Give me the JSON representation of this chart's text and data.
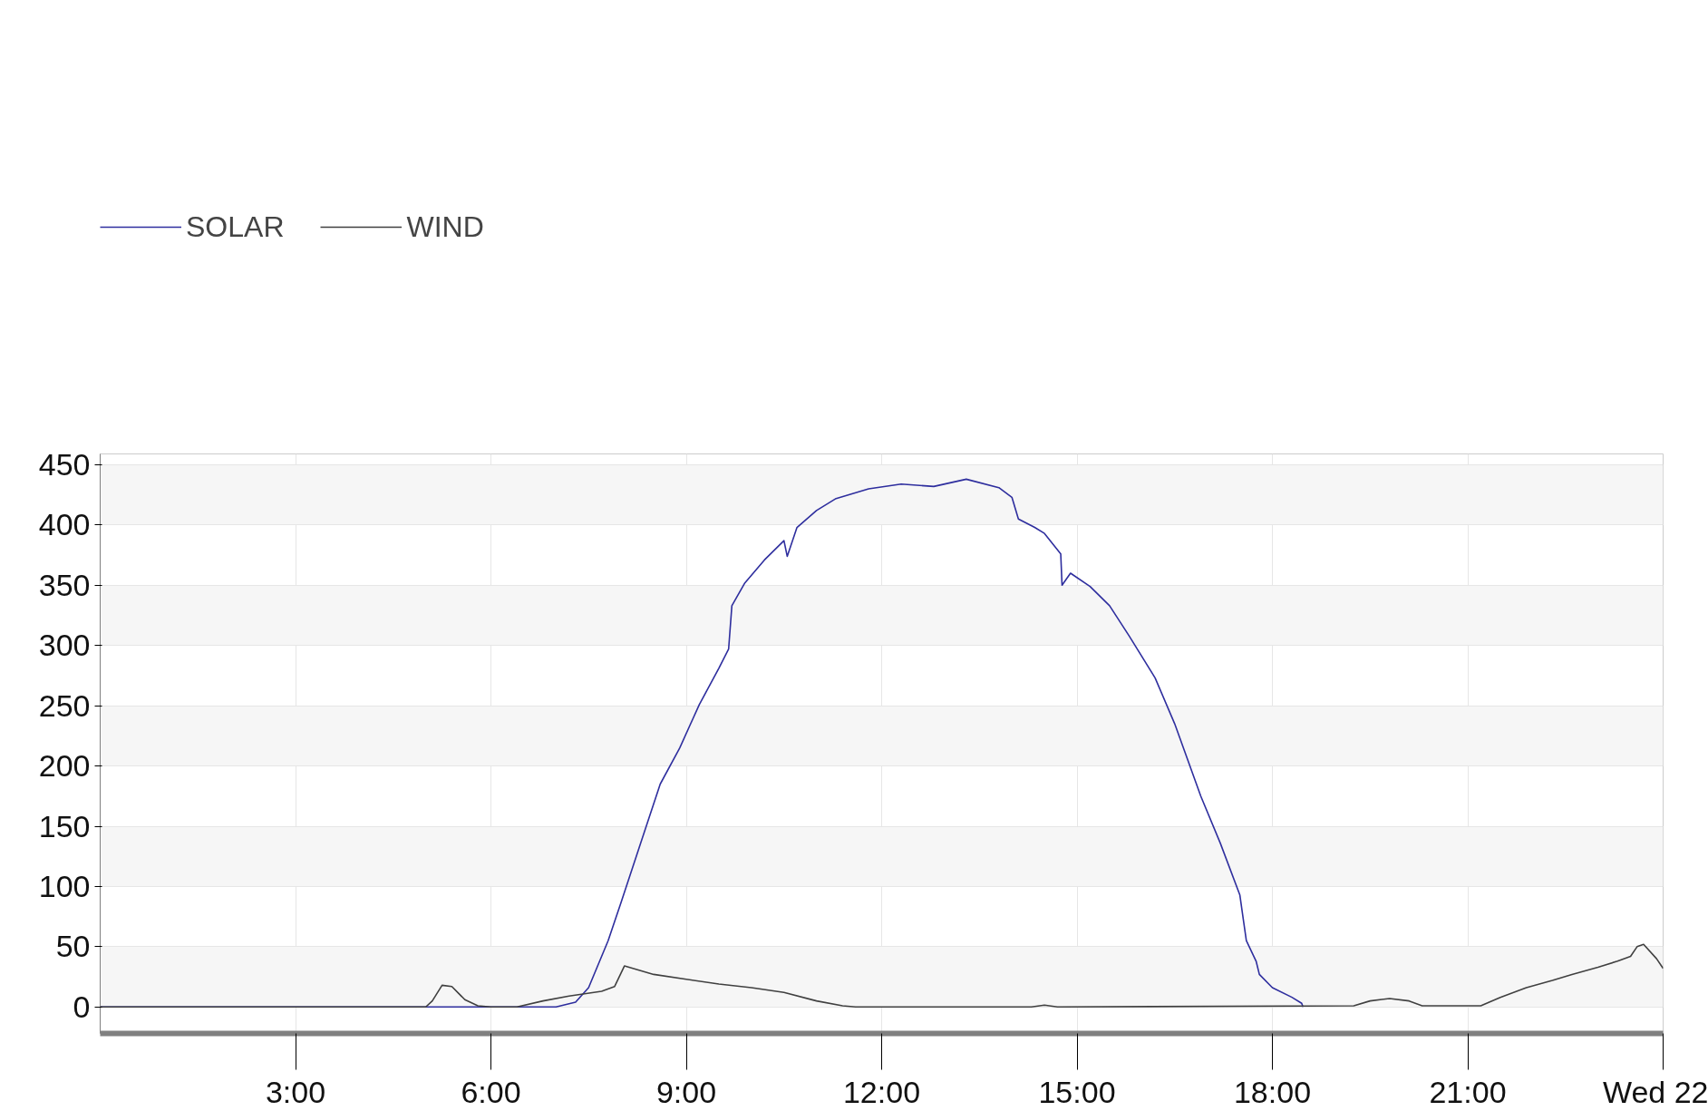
{
  "chart_data": {
    "type": "line",
    "xlim": [
      0,
      24
    ],
    "ylim": [
      -22,
      459
    ],
    "xticks": [
      {
        "value": 3,
        "label": "3:00"
      },
      {
        "value": 6,
        "label": "6:00"
      },
      {
        "value": 9,
        "label": "9:00"
      },
      {
        "value": 12,
        "label": "12:00"
      },
      {
        "value": 15,
        "label": "15:00"
      },
      {
        "value": 18,
        "label": "18:00"
      },
      {
        "value": 21,
        "label": "21:00"
      },
      {
        "value": 24,
        "label": "Wed 22"
      }
    ],
    "yticks": [
      0,
      50,
      100,
      150,
      200,
      250,
      300,
      350,
      400,
      450
    ],
    "grid": true,
    "legend": "top left",
    "marker": "none",
    "line_style": "solid",
    "series": [
      {
        "name": "SOLAR",
        "color": "#2e2e9e",
        "x": [
          0,
          7.0,
          7.3,
          7.5,
          7.8,
          8.0,
          8.3,
          8.6,
          8.9,
          9.2,
          9.5,
          9.65,
          9.7,
          9.9,
          10.2,
          10.5,
          10.55,
          10.7,
          11.0,
          11.3,
          11.8,
          12.3,
          12.8,
          13.3,
          13.8,
          14.0,
          14.1,
          14.35,
          14.5,
          14.75,
          14.77,
          14.9,
          15.2,
          15.5,
          15.8,
          16.2,
          16.5,
          16.9,
          17.2,
          17.5,
          17.6,
          17.75,
          17.8,
          18.0,
          18.3,
          18.45,
          18.47
        ],
        "values": [
          0,
          0,
          4,
          16,
          55,
          87,
          136,
          185,
          215,
          251,
          281,
          297,
          333,
          352,
          371,
          387,
          374,
          398,
          412,
          422,
          430,
          434,
          432,
          438,
          431,
          423,
          405,
          398,
          393,
          376,
          350,
          360,
          349,
          333,
          308,
          273,
          235,
          175,
          136,
          93,
          55,
          38,
          27,
          16,
          8,
          3,
          0
        ]
      },
      {
        "name": "WIND",
        "color": "#404040",
        "x": [
          0,
          5.0,
          5.1,
          5.25,
          5.4,
          5.6,
          5.8,
          6.0,
          6.4,
          6.8,
          7.2,
          7.7,
          7.9,
          8.05,
          8.5,
          9.0,
          9.5,
          10.0,
          10.5,
          11.0,
          11.4,
          11.6,
          14.3,
          14.5,
          14.7,
          19.25,
          19.5,
          19.8,
          20.1,
          20.3,
          21.0,
          21.2,
          21.5,
          21.9,
          22.3,
          22.6,
          23.0,
          23.3,
          23.5,
          23.6,
          23.7,
          23.9,
          24.0
        ],
        "values": [
          0,
          0,
          5,
          18,
          17,
          6,
          1,
          0,
          0,
          5,
          9,
          13,
          17,
          34,
          27,
          23,
          19,
          16,
          12,
          5,
          1,
          0,
          0,
          1.5,
          0,
          1,
          5,
          7,
          5,
          1,
          1,
          1,
          8,
          16,
          22,
          27,
          33,
          38,
          42,
          50,
          52,
          40,
          32
        ]
      }
    ]
  }
}
